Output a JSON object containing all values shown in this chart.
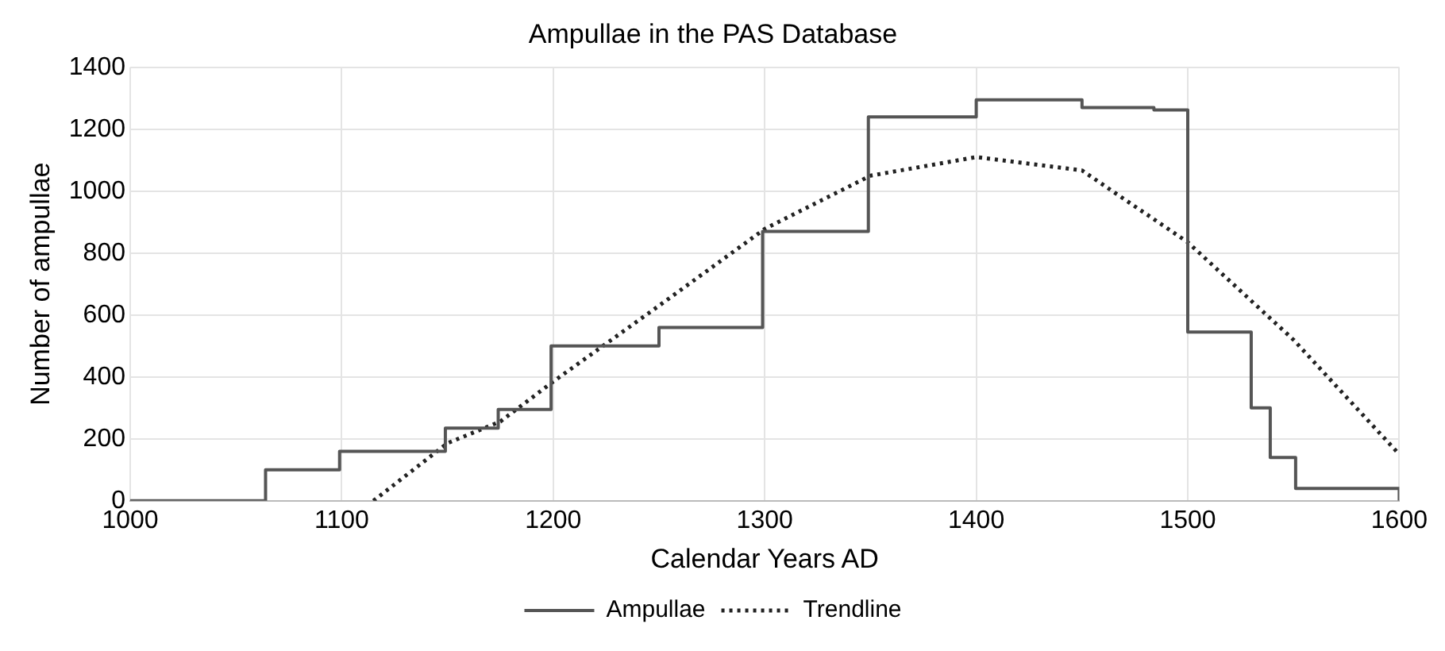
{
  "chart_data": {
    "type": "step",
    "title": "Ampullae in the PAS Database",
    "xlabel": "Calendar Years AD",
    "ylabel": "Number of ampullae",
    "x": [
      1000,
      1064,
      1099,
      1149,
      1174,
      1199,
      1250,
      1299,
      1349,
      1400,
      1450,
      1484,
      1500,
      1530,
      1539,
      1551,
      1600
    ],
    "series": [
      {
        "name": "Ampullae",
        "color": "#555555",
        "line_style": "solid",
        "values": [
          0,
          100,
          160,
          235,
          295,
          500,
          560,
          870,
          1240,
          1295,
          1270,
          1262,
          545,
          300,
          140,
          40,
          0
        ]
      },
      {
        "name": "Trendline",
        "type": "line",
        "color": "#222222",
        "line_style": "dotted",
        "x": [
          1115,
          1150,
          1175,
          1200,
          1250,
          1300,
          1350,
          1400,
          1450,
          1500,
          1550,
          1600
        ],
        "values": [
          0,
          186,
          256,
          385,
          630,
          878,
          1050,
          1110,
          1067,
          835,
          520,
          150
        ]
      }
    ],
    "xlim": [
      1000,
      1600
    ],
    "xticks": [
      1000,
      1100,
      1200,
      1300,
      1400,
      1500,
      1600
    ],
    "ylim": [
      0,
      1400
    ],
    "yticks": [
      0,
      200,
      400,
      600,
      800,
      1000,
      1200,
      1400
    ],
    "grid": true,
    "legend": "bottom",
    "marker": "none"
  }
}
